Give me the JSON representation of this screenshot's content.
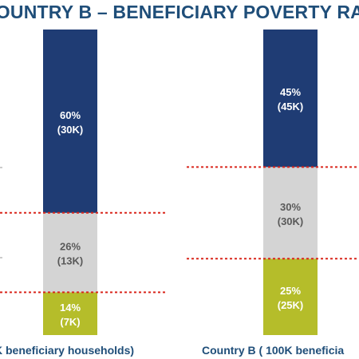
{
  "title": "COUNTRY B – BENEFICIARY POVERTY RA",
  "colors": {
    "title": "#1F4E79",
    "extreme_poor": "#1F3C74",
    "moderate_poor": "#D4D4D4",
    "non_poor": "#B5BD2A",
    "threshold_line": "#D9261C",
    "bar_text_light": "#FFFFFF",
    "bar_text_dark": "#595959"
  },
  "chart_data": [
    {
      "type": "bar",
      "stacked": true,
      "caption": "K beneficiary households)",
      "ylim": [
        0,
        100
      ],
      "segments": [
        {
          "percent": 14,
          "value_label": "14%",
          "count_label": "(7K)",
          "color": "#B5BD2A",
          "text_color": "#FFFFFF"
        },
        {
          "percent": 26,
          "value_label": "26%",
          "count_label": "(13K)",
          "color": "#D4D4D4",
          "text_color": "#595959"
        },
        {
          "percent": 60,
          "value_label": "60%",
          "count_label": "(30K)",
          "color": "#1F3C74",
          "text_color": "#FFFFFF"
        }
      ],
      "threshold_lines_at_percent": [
        14,
        40
      ],
      "grid": false,
      "legend": "none"
    },
    {
      "type": "bar",
      "stacked": true,
      "caption": "Country B ( 100K beneficia",
      "ylim": [
        0,
        100
      ],
      "segments": [
        {
          "percent": 25,
          "value_label": "25%",
          "count_label": "(25K)",
          "color": "#B5BD2A",
          "text_color": "#FFFFFF"
        },
        {
          "percent": 30,
          "value_label": "30%",
          "count_label": "(30K)",
          "color": "#D4D4D4",
          "text_color": "#595959"
        },
        {
          "percent": 45,
          "value_label": "45%",
          "count_label": "(45K)",
          "color": "#1F3C74",
          "text_color": "#FFFFFF"
        }
      ],
      "threshold_lines_at_percent": [
        25,
        55
      ],
      "grid": false,
      "legend": "none"
    }
  ]
}
